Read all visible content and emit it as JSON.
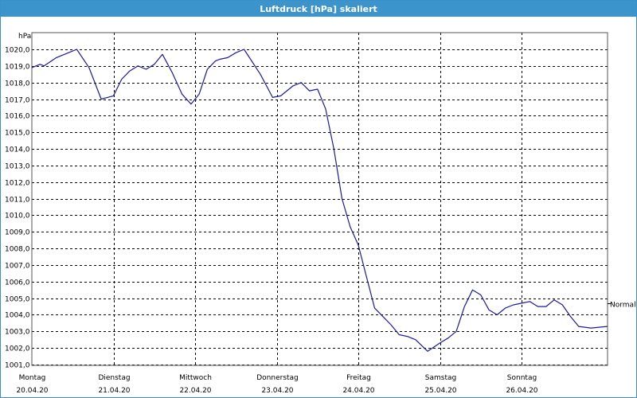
{
  "window": {
    "title": "Luftdruck [hPa] skaliert"
  },
  "colors": {
    "titlebar": "#3c94cc",
    "line": "#1a1aa0",
    "grid": "#000000",
    "axis": "#555555"
  },
  "chart_data": {
    "type": "line",
    "title": "Luftdruck [hPa] skaliert",
    "ylabel": "hPa",
    "xlabel": "",
    "ylim": [
      1001.0,
      1020.0
    ],
    "y_ticks": [
      "1001,0",
      "1002,0",
      "1003,0",
      "1004,0",
      "1005,0",
      "1006,0",
      "1007,0",
      "1008,0",
      "1009,0",
      "1010,0",
      "1011,0",
      "1012,0",
      "1013,0",
      "1014,0",
      "1015,0",
      "1016,0",
      "1017,0",
      "1018,0",
      "1019,0",
      "1020,0"
    ],
    "xlim": [
      0,
      7.05
    ],
    "x_ticks": [
      {
        "day": "Montag",
        "date": "20.04.20"
      },
      {
        "day": "Dienstag",
        "date": "21.04.20"
      },
      {
        "day": "Mittwoch",
        "date": "22.04.20"
      },
      {
        "day": "Donnerstag",
        "date": "23.04.20"
      },
      {
        "day": "Freitag",
        "date": "24.04.20"
      },
      {
        "day": "Samstag",
        "date": "25.04.20"
      },
      {
        "day": "Sonntag",
        "date": "26.04.20"
      }
    ],
    "grid": true,
    "reference_line": {
      "label": "Normal",
      "value": 1004.7
    },
    "series": [
      {
        "x": [
          0.0,
          0.1,
          0.15,
          0.3,
          0.45,
          0.55,
          0.7,
          0.85,
          1.0,
          1.1,
          1.2,
          1.3,
          1.4,
          1.5,
          1.6,
          1.72,
          1.84,
          1.95,
          2.05,
          2.15,
          2.25,
          2.3,
          2.4,
          2.5,
          2.6,
          2.8,
          2.95,
          3.05,
          3.2,
          3.3,
          3.4,
          3.5,
          3.6,
          3.7,
          3.8,
          3.9,
          4.0,
          4.1,
          4.2,
          4.3,
          4.4,
          4.5,
          4.6,
          4.7,
          4.85,
          5.0,
          5.1,
          5.2,
          5.3,
          5.4,
          5.5,
          5.6,
          5.7,
          5.8,
          5.9,
          6.0,
          6.1,
          6.2,
          6.3,
          6.4,
          6.5,
          6.6,
          6.7,
          6.85,
          7.05
        ],
        "y": [
          1018.9,
          1019.1,
          1019.0,
          1019.5,
          1019.8,
          1020.0,
          1018.9,
          1017.0,
          1017.2,
          1018.2,
          1018.7,
          1019.0,
          1018.8,
          1019.1,
          1019.7,
          1018.6,
          1017.3,
          1016.7,
          1017.3,
          1018.8,
          1019.3,
          1019.4,
          1019.5,
          1019.8,
          1020.0,
          1018.5,
          1017.1,
          1017.2,
          1017.8,
          1018.0,
          1017.5,
          1017.6,
          1016.4,
          1014.0,
          1011.0,
          1009.3,
          1008.2,
          1006.3,
          1004.4,
          1003.9,
          1003.4,
          1002.8,
          1002.7,
          1002.5,
          1001.8,
          1002.3,
          1002.6,
          1003.0,
          1004.5,
          1005.5,
          1005.2,
          1004.3,
          1004.0,
          1004.4,
          1004.6,
          1004.7,
          1004.8,
          1004.5,
          1004.5,
          1004.9,
          1004.6,
          1003.9,
          1003.3,
          1003.2,
          1003.3
        ]
      }
    ]
  }
}
